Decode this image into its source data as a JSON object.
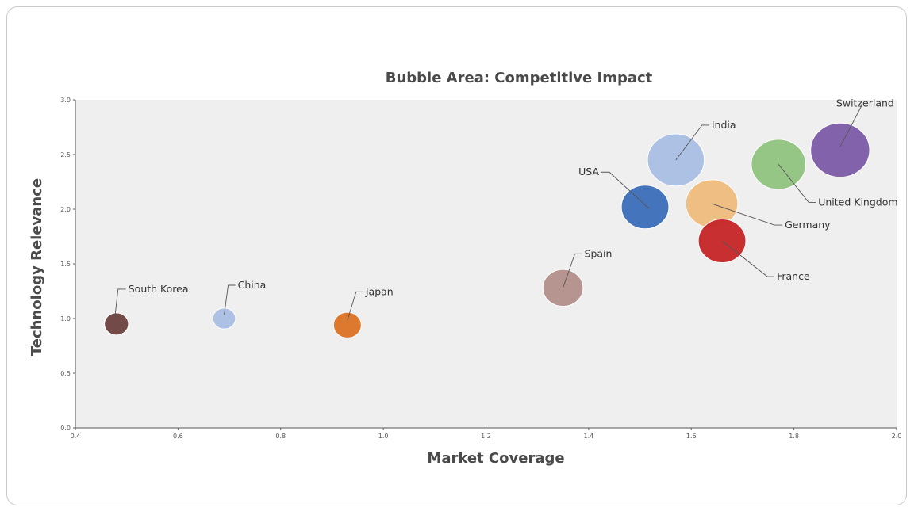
{
  "chart_data": {
    "type": "scatter",
    "title": "Bubble Area: Competitive Impact",
    "xlabel": "Market Coverage",
    "ylabel": "Technology Relevance",
    "xlim": [
      0.4,
      2.0
    ],
    "ylim": [
      0.0,
      3.0
    ],
    "xticks": [
      "0.4",
      "0.6",
      "0.8",
      "1.0",
      "1.2",
      "1.4",
      "1.6",
      "1.8",
      "2.0"
    ],
    "yticks": [
      "0.0",
      "0.5",
      "1.0",
      "1.5",
      "2.0",
      "2.5",
      "3.0"
    ],
    "plot_background": "#efefef",
    "points": [
      {
        "label": "South Korea",
        "x": 0.48,
        "y": 0.95,
        "size": 0.9,
        "color": "#6e4543"
      },
      {
        "label": "China",
        "x": 0.69,
        "y": 1.0,
        "size": 0.8,
        "color": "#aac0e4"
      },
      {
        "label": "Japan",
        "x": 0.93,
        "y": 0.94,
        "size": 1.2,
        "color": "#dd7628"
      },
      {
        "label": "Spain",
        "x": 1.35,
        "y": 1.28,
        "size": 2.5,
        "color": "#b5928d"
      },
      {
        "label": "USA",
        "x": 1.51,
        "y": 2.02,
        "size": 3.5,
        "color": "#3f72bb"
      },
      {
        "label": "India",
        "x": 1.57,
        "y": 2.45,
        "size": 5.0,
        "color": "#aac0e4"
      },
      {
        "label": "Germany",
        "x": 1.64,
        "y": 2.05,
        "size": 4.2,
        "color": "#efbd80"
      },
      {
        "label": "France",
        "x": 1.66,
        "y": 1.71,
        "size": 3.5,
        "color": "#c7292b"
      },
      {
        "label": "United Kingdom",
        "x": 1.77,
        "y": 2.41,
        "size": 4.6,
        "color": "#93c582"
      },
      {
        "label": "Switzerland",
        "x": 1.89,
        "y": 2.54,
        "size": 5.4,
        "color": "#7f5fa9"
      }
    ]
  }
}
